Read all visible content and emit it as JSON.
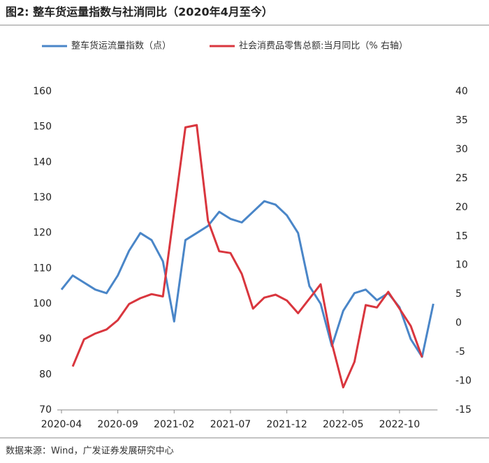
{
  "chart_data": {
    "type": "line",
    "title": "图2:  整车货运量指数与社消同比（2020年4月至今）",
    "source": "数据来源：Wind，广发证券发展研究中心",
    "x": [
      "2020-04",
      "2020-05",
      "2020-06",
      "2020-07",
      "2020-08",
      "2020-09",
      "2020-10",
      "2020-11",
      "2020-12",
      "2021-01",
      "2021-02",
      "2021-03",
      "2021-04",
      "2021-05",
      "2021-06",
      "2021-07",
      "2021-08",
      "2021-09",
      "2021-10",
      "2021-11",
      "2021-12",
      "2022-01",
      "2022-02",
      "2022-03",
      "2022-04",
      "2022-05",
      "2022-06",
      "2022-07",
      "2022-08",
      "2022-09",
      "2022-10",
      "2022-11",
      "2022-12",
      "2023-01"
    ],
    "xticks": [
      "2020-04",
      "2020-09",
      "2021-02",
      "2021-07",
      "2021-12",
      "2022-05",
      "2022-10"
    ],
    "series": [
      {
        "name": "整车货运流量指数（点）",
        "color": "#4a86c8",
        "values": [
          104,
          108,
          106,
          104,
          103,
          108,
          115,
          120,
          118,
          112,
          95,
          118,
          120,
          122,
          126,
          124,
          123,
          126,
          129,
          128,
          125,
          120,
          105,
          100,
          88,
          98,
          103,
          104,
          101,
          103,
          99,
          90,
          85,
          100
        ]
      },
      {
        "name": "社会消费品零售总额:当月同比（% 右轴）",
        "color": "#d9363e",
        "axis": "y2",
        "x": [
          "2020-05",
          "2020-06",
          "2020-07",
          "2020-08",
          "2020-09",
          "2020-10",
          "2020-11",
          "2020-12",
          "2021-01",
          "2021-03",
          "2021-04",
          "2021-05",
          "2021-06",
          "2021-07",
          "2021-08",
          "2021-09",
          "2021-10",
          "2021-11",
          "2021-12",
          "2022-01",
          "2022-03",
          "2022-04",
          "2022-05",
          "2022-06",
          "2022-07",
          "2022-08",
          "2022-09",
          "2022-10",
          "2022-11",
          "2022-12"
        ],
        "values": [
          -7.5,
          -2.8,
          -1.8,
          -1.1,
          0.5,
          3.3,
          4.3,
          5.0,
          4.6,
          33.8,
          34.2,
          17.7,
          12.4,
          12.1,
          8.5,
          2.5,
          4.4,
          4.9,
          3.9,
          1.7,
          6.7,
          -3.5,
          -11.1,
          -6.7,
          3.1,
          2.7,
          5.4,
          2.5,
          -0.5,
          -5.9
        ]
      }
    ],
    "ylim": [
      70,
      160
    ],
    "yticks": [
      70,
      80,
      90,
      100,
      110,
      120,
      130,
      140,
      150,
      160
    ],
    "y2lim": [
      -15,
      40
    ],
    "y2ticks": [
      -15,
      -10,
      -5,
      0,
      5,
      10,
      15,
      20,
      25,
      30,
      35,
      40
    ]
  }
}
